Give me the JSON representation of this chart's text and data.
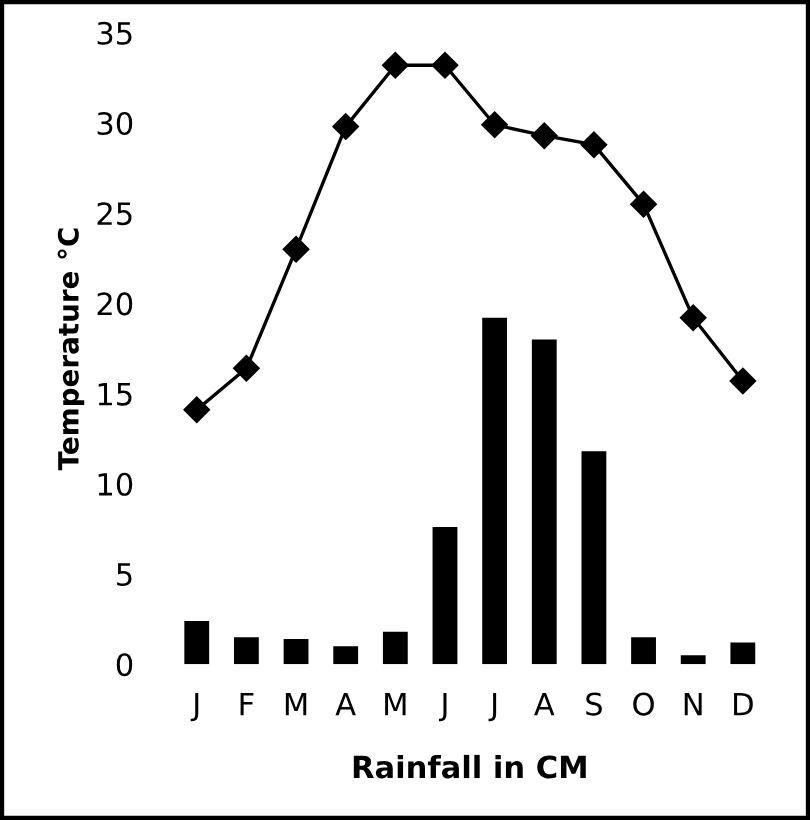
{
  "chart_data": {
    "type": "bar",
    "ylabel": "Temperature °C",
    "xlabel": "Rainfall in CM",
    "categories": [
      "J",
      "F",
      "M",
      "A",
      "M",
      "J",
      "J",
      "A",
      "S",
      "O",
      "N",
      "D"
    ],
    "ylim": [
      0,
      35
    ],
    "yticks": [
      0,
      5,
      10,
      15,
      20,
      25,
      30,
      35
    ],
    "grid": false,
    "legend": false,
    "series": [
      {
        "color": "#000000",
        "values": [
          2.4,
          1.5,
          1.4,
          1.0,
          1.8,
          7.6,
          19.2,
          18.0,
          11.8,
          1.5,
          0.5,
          1.2
        ]
      },
      {
        "type": "line",
        "color": "#000000",
        "marker": "diamond",
        "line_style": "solid",
        "values": [
          14.1,
          16.4,
          23.0,
          29.8,
          33.2,
          33.2,
          29.9,
          29.3,
          28.8,
          25.5,
          19.2,
          15.7
        ]
      }
    ]
  }
}
